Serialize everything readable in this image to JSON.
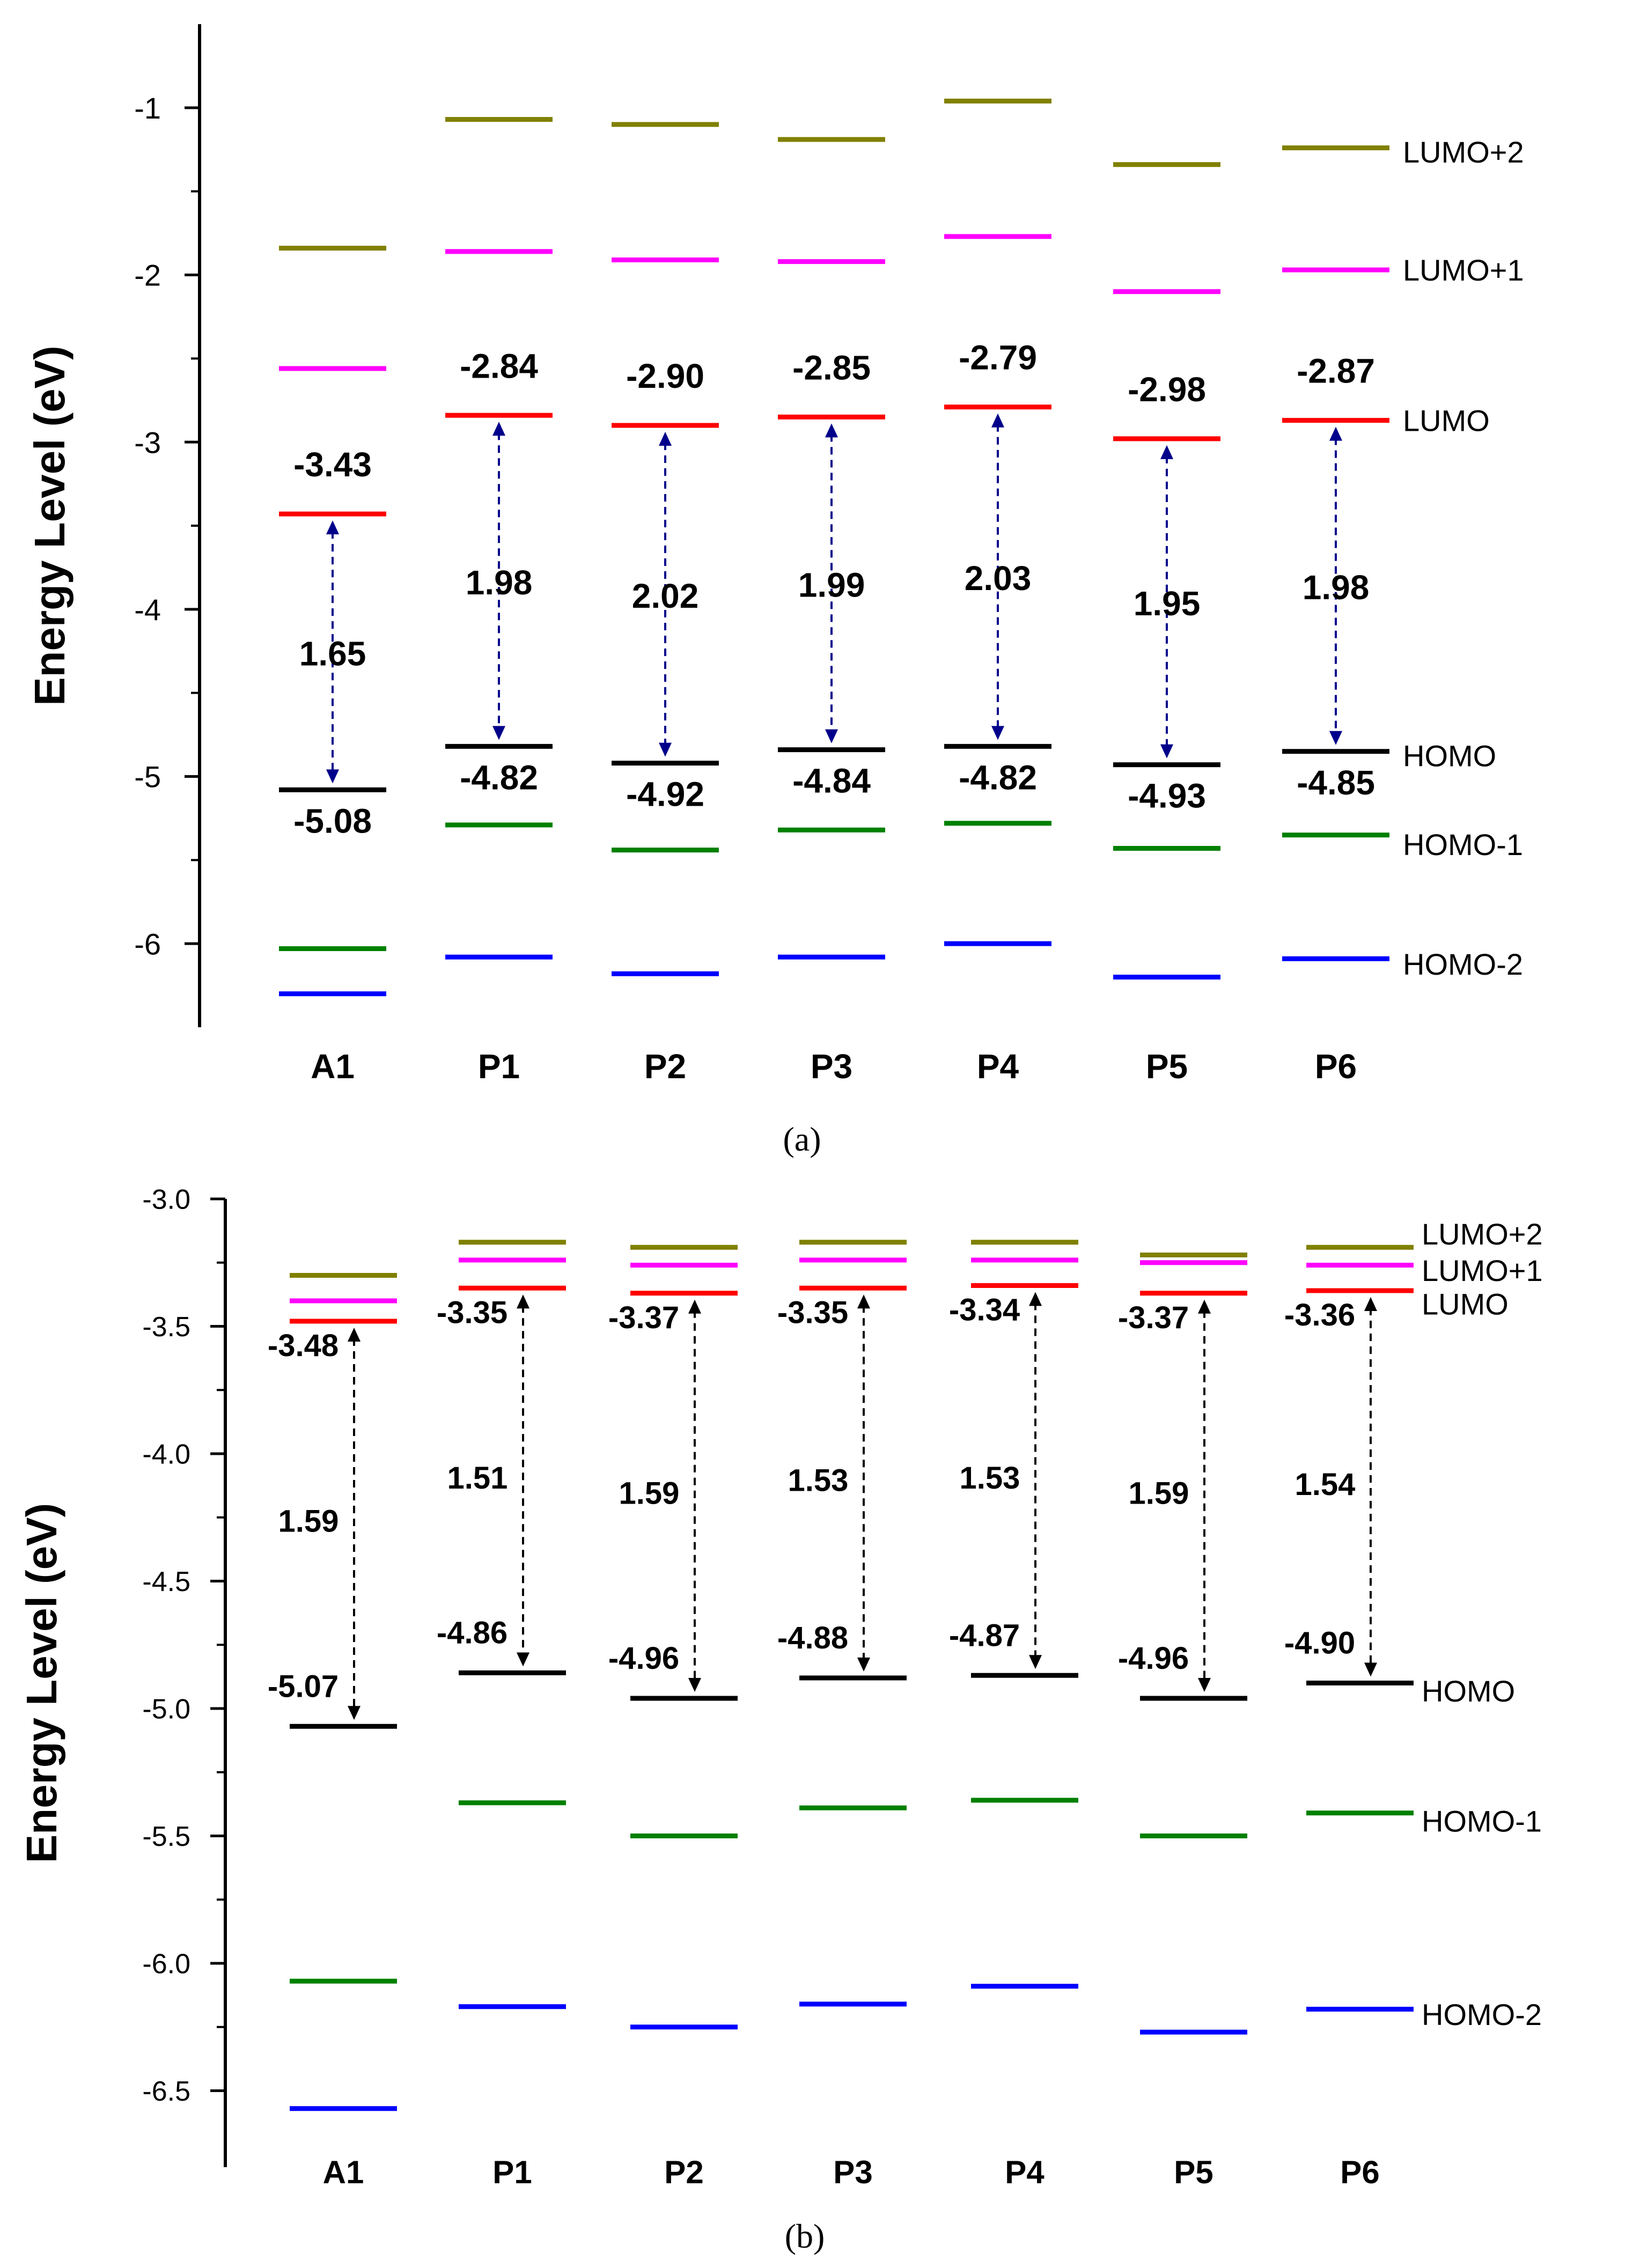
{
  "colors": {
    "lumo2": "#808000",
    "lumo1": "#ff00ff",
    "lumo": "#ff0000",
    "homo": "#000000",
    "homo1": "#008000",
    "homo2": "#0000ff",
    "arrow_a": "#00008b",
    "arrow_b": "#000000"
  },
  "chart_data": [
    {
      "type": "energy-level-diagram",
      "panel_label": "(a)",
      "ylabel": "Energy Level (eV)",
      "ylim": [
        -6.5,
        -0.5
      ],
      "yticks": [
        -1,
        -2,
        -3,
        -4,
        -5,
        -6
      ],
      "categories": [
        "A1",
        "P1",
        "P2",
        "P3",
        "P4",
        "P5",
        "P6"
      ],
      "series": [
        {
          "name": "LUMO+2",
          "color_key": "lumo2",
          "values": [
            -1.84,
            -1.07,
            -1.1,
            -1.19,
            -0.96,
            -1.34,
            -1.24
          ]
        },
        {
          "name": "LUMO+1",
          "color_key": "lumo1",
          "values": [
            -2.56,
            -1.86,
            -1.91,
            -1.92,
            -1.77,
            -2.1,
            -1.97
          ]
        },
        {
          "name": "LUMO",
          "color_key": "lumo",
          "values": [
            -3.43,
            -2.84,
            -2.9,
            -2.85,
            -2.79,
            -2.98,
            -2.87
          ]
        },
        {
          "name": "HOMO",
          "color_key": "homo",
          "values": [
            -5.08,
            -4.82,
            -4.92,
            -4.84,
            -4.82,
            -4.93,
            -4.85
          ]
        },
        {
          "name": "HOMO-1",
          "color_key": "homo1",
          "values": [
            -6.03,
            -5.29,
            -5.44,
            -5.32,
            -5.28,
            -5.43,
            -5.35
          ]
        },
        {
          "name": "HOMO-2",
          "color_key": "homo2",
          "values": [
            -6.3,
            -6.08,
            -6.18,
            -6.08,
            -6.0,
            -6.2,
            -6.09
          ]
        }
      ],
      "lumo_labels": [
        "-3.43",
        "-2.84",
        "-2.90",
        "-2.85",
        "-2.79",
        "-2.98",
        "-2.87"
      ],
      "homo_labels": [
        "-5.08",
        "-4.82",
        "-4.92",
        "-4.84",
        "-4.82",
        "-4.93",
        "-4.85"
      ],
      "gap_labels": [
        "1.65",
        "1.98",
        "2.02",
        "1.99",
        "2.03",
        "1.95",
        "1.98"
      ]
    },
    {
      "type": "energy-level-diagram",
      "panel_label": "(b)",
      "ylabel": "Energy Level (eV)",
      "ylim": [
        -6.8,
        -3.0
      ],
      "yticks": [
        -3.0,
        -3.5,
        -4.0,
        -4.5,
        -5.0,
        -5.5,
        -6.0,
        -6.5
      ],
      "ytick_labels": [
        "-3.0",
        "-3.5",
        "-4.0",
        "-4.5",
        "-5.0",
        "-5.5",
        "-6.0",
        "-6.5"
      ],
      "categories": [
        "A1",
        "P1",
        "P2",
        "P3",
        "P4",
        "P5",
        "P6"
      ],
      "series": [
        {
          "name": "LUMO+2",
          "color_key": "lumo2",
          "values": [
            -3.3,
            -3.17,
            -3.19,
            -3.17,
            -3.17,
            -3.22,
            -3.19
          ]
        },
        {
          "name": "LUMO+1",
          "color_key": "lumo1",
          "values": [
            -3.4,
            -3.24,
            -3.26,
            -3.24,
            -3.24,
            -3.25,
            -3.26
          ]
        },
        {
          "name": "LUMO",
          "color_key": "lumo",
          "values": [
            -3.48,
            -3.35,
            -3.37,
            -3.35,
            -3.34,
            -3.37,
            -3.36
          ]
        },
        {
          "name": "HOMO",
          "color_key": "homo",
          "values": [
            -5.07,
            -4.86,
            -4.96,
            -4.88,
            -4.87,
            -4.96,
            -4.9
          ]
        },
        {
          "name": "HOMO-1",
          "color_key": "homo1",
          "values": [
            -6.07,
            -5.37,
            -5.5,
            -5.39,
            -5.36,
            -5.5,
            -5.41
          ]
        },
        {
          "name": "HOMO-2",
          "color_key": "homo2",
          "values": [
            -6.57,
            -6.17,
            -6.25,
            -6.16,
            -6.09,
            -6.27,
            -6.18
          ]
        }
      ],
      "lumo_labels": [
        "-3.48",
        "-3.35",
        "-3.37",
        "-3.35",
        "-3.34",
        "-3.37",
        "-3.36"
      ],
      "homo_labels": [
        "-5.07",
        "-4.86",
        "-4.96",
        "-4.88",
        "-4.87",
        "-4.96",
        "-4.90"
      ],
      "gap_labels": [
        "1.59",
        "1.51",
        "1.59",
        "1.53",
        "1.53",
        "1.59",
        "1.54"
      ]
    }
  ]
}
